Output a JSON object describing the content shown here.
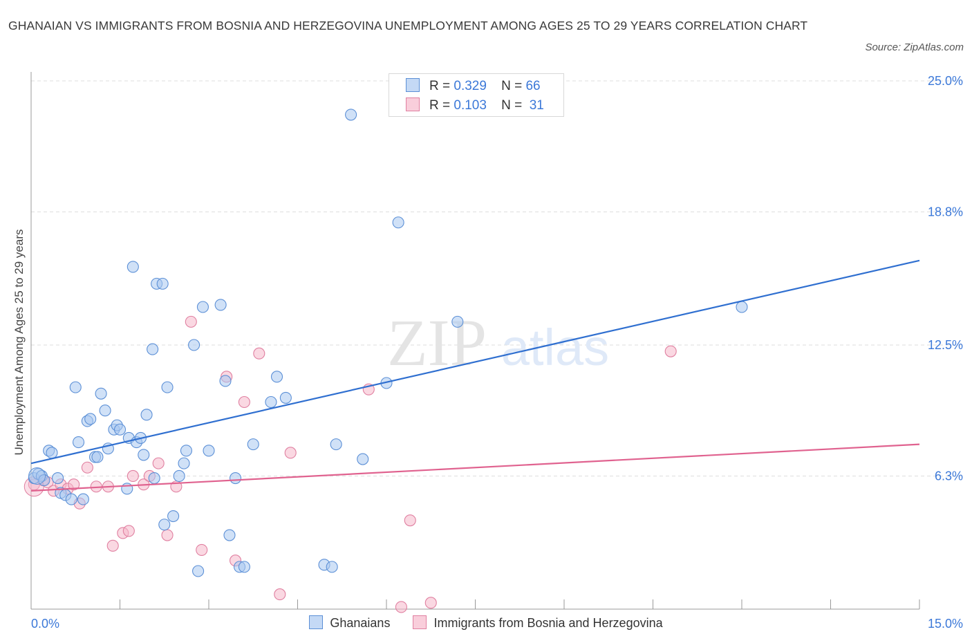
{
  "header": {
    "title": "GHANAIAN VS IMMIGRANTS FROM BOSNIA AND HERZEGOVINA UNEMPLOYMENT AMONG AGES 25 TO 29 YEARS CORRELATION CHART",
    "source": "Source: ZipAtlas.com"
  },
  "watermark": {
    "zip": "ZIP",
    "atlas": "atlas"
  },
  "stats_legend": {
    "r_label": "R =",
    "n_label": "N =",
    "rows": [
      {
        "r": "0.329",
        "n": "66"
      },
      {
        "r": "0.103",
        "n": "31"
      }
    ]
  },
  "colors": {
    "blue_fill": "#a9c8f0",
    "blue_stroke": "#5b8fd6",
    "blue_line": "#2f6fd0",
    "pink_fill": "#f6b8cb",
    "pink_stroke": "#e07fa0",
    "pink_line": "#e0628f",
    "tick_label": "#3b78d8",
    "grid": "#dddddd"
  },
  "chart_data": {
    "type": "scatter",
    "xlabel": "",
    "ylabel": "Unemployment Among Ages 25 to 29 years",
    "xlim": [
      0,
      15
    ],
    "ylim": [
      0,
      25
    ],
    "x_tick_labels": [
      "0.0%",
      "15.0%"
    ],
    "y_ticks": [
      6.3,
      12.5,
      18.8,
      25.0
    ],
    "y_tick_labels": [
      "6.3%",
      "12.5%",
      "18.8%",
      "25.0%"
    ],
    "grid": "horizontal dashed",
    "legend_placement": "top-center and bottom",
    "series": [
      {
        "name": "Ghanaians",
        "r": 0.329,
        "n": 66,
        "trend": {
          "x": [
            0,
            15
          ],
          "y": [
            6.9,
            16.5
          ]
        },
        "points": [
          [
            0.05,
            6.2
          ],
          [
            0.12,
            6.4
          ],
          [
            0.18,
            6.3
          ],
          [
            0.22,
            6.1
          ],
          [
            0.3,
            7.5
          ],
          [
            0.35,
            7.4
          ],
          [
            0.45,
            6.2
          ],
          [
            0.5,
            5.5
          ],
          [
            0.58,
            5.4
          ],
          [
            0.68,
            5.2
          ],
          [
            0.75,
            10.5
          ],
          [
            0.8,
            7.9
          ],
          [
            0.88,
            5.2
          ],
          [
            0.95,
            8.9
          ],
          [
            1.0,
            9.0
          ],
          [
            1.08,
            7.2
          ],
          [
            1.12,
            7.2
          ],
          [
            1.18,
            10.2
          ],
          [
            1.25,
            9.4
          ],
          [
            1.3,
            7.6
          ],
          [
            1.4,
            8.5
          ],
          [
            1.45,
            8.7
          ],
          [
            1.5,
            8.5
          ],
          [
            1.62,
            5.7
          ],
          [
            1.65,
            8.1
          ],
          [
            1.72,
            16.2
          ],
          [
            1.78,
            7.9
          ],
          [
            1.85,
            8.1
          ],
          [
            1.9,
            7.3
          ],
          [
            1.95,
            9.2
          ],
          [
            2.05,
            12.3
          ],
          [
            2.08,
            6.2
          ],
          [
            2.12,
            15.4
          ],
          [
            2.22,
            15.4
          ],
          [
            2.25,
            4.0
          ],
          [
            2.3,
            10.5
          ],
          [
            2.4,
            4.4
          ],
          [
            2.5,
            6.3
          ],
          [
            2.58,
            6.9
          ],
          [
            2.62,
            7.5
          ],
          [
            2.75,
            12.5
          ],
          [
            2.82,
            1.8
          ],
          [
            2.9,
            14.3
          ],
          [
            3.0,
            7.5
          ],
          [
            3.2,
            14.4
          ],
          [
            3.28,
            10.8
          ],
          [
            3.35,
            3.5
          ],
          [
            3.45,
            6.2
          ],
          [
            3.52,
            2.0
          ],
          [
            3.6,
            2.0
          ],
          [
            3.75,
            7.8
          ],
          [
            4.05,
            9.8
          ],
          [
            4.15,
            11.0
          ],
          [
            4.3,
            10.0
          ],
          [
            4.95,
            2.1
          ],
          [
            5.08,
            2.0
          ],
          [
            5.15,
            7.8
          ],
          [
            5.4,
            23.4
          ],
          [
            5.6,
            7.1
          ],
          [
            6.0,
            10.7
          ],
          [
            6.2,
            18.3
          ],
          [
            7.2,
            13.6
          ],
          [
            12.0,
            14.3
          ]
        ]
      },
      {
        "name": "Immigrants from Bosnia and Herzegovina",
        "r": 0.103,
        "n": 31,
        "trend": {
          "x": [
            0,
            15
          ],
          "y": [
            5.6,
            7.8
          ]
        },
        "points": [
          [
            0.05,
            5.9
          ],
          [
            0.2,
            6.1
          ],
          [
            0.28,
            6.0
          ],
          [
            0.38,
            5.6
          ],
          [
            0.5,
            5.9
          ],
          [
            0.62,
            5.7
          ],
          [
            0.72,
            5.9
          ],
          [
            0.82,
            5.0
          ],
          [
            0.95,
            6.7
          ],
          [
            1.1,
            5.8
          ],
          [
            1.3,
            5.8
          ],
          [
            1.38,
            3.0
          ],
          [
            1.55,
            3.6
          ],
          [
            1.65,
            3.7
          ],
          [
            1.72,
            6.3
          ],
          [
            1.9,
            5.9
          ],
          [
            2.0,
            6.3
          ],
          [
            2.15,
            6.9
          ],
          [
            2.3,
            3.5
          ],
          [
            2.45,
            5.8
          ],
          [
            2.7,
            13.6
          ],
          [
            2.88,
            2.8
          ],
          [
            3.3,
            11.0
          ],
          [
            3.45,
            2.3
          ],
          [
            3.6,
            9.8
          ],
          [
            3.85,
            12.1
          ],
          [
            4.2,
            0.7
          ],
          [
            4.38,
            7.4
          ],
          [
            5.7,
            10.4
          ],
          [
            6.25,
            0.1
          ],
          [
            6.4,
            4.2
          ],
          [
            6.75,
            0.3
          ],
          [
            10.8,
            12.2
          ]
        ]
      }
    ]
  }
}
